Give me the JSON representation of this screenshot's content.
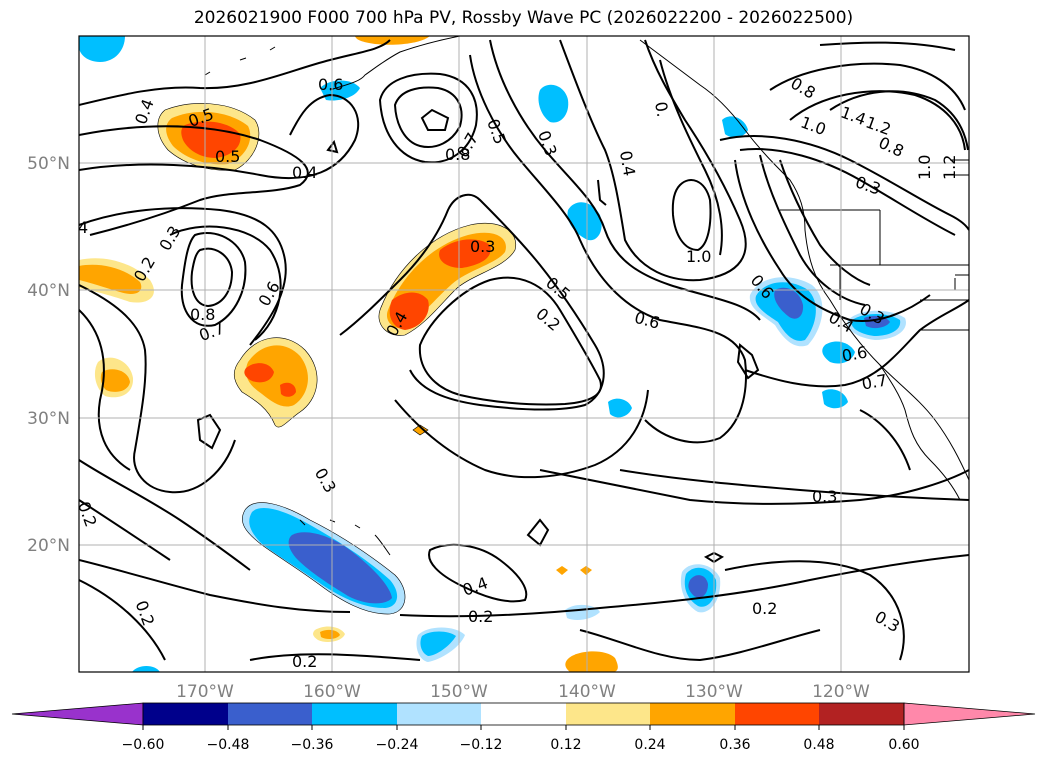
{
  "title": "2026021900 F000 700 hPa PV, Rossby Wave PC (2026022200 - 2026022500)",
  "lat_labels": [
    "50°N",
    "40°N",
    "30°N",
    "20°N"
  ],
  "lon_labels": [
    "170°W",
    "160°W",
    "150°W",
    "140°W",
    "130°W",
    "120°W"
  ],
  "contour_labels": [
    "0.4",
    "0.5",
    "0.5",
    "0.4",
    "0.6",
    "0.8",
    "0.7",
    "0.5",
    "0.3",
    "0.4",
    "0.",
    "0.8",
    "1.0",
    "1.4",
    "1.2",
    "0.8",
    "0.3",
    "1.0",
    "1.2",
    "4",
    "0.2",
    "0.3",
    "0.6",
    "0.8",
    "0.7",
    "0.3",
    "0.5",
    "0.2",
    "0.6",
    "1.0",
    "0.6",
    "0.4",
    "0.3",
    "0.6",
    "0.7",
    "0.4",
    "0.3",
    "0.3",
    "0.2",
    "0.2",
    "0.4",
    "0.2",
    "0.2",
    "0.2",
    "0.3"
  ],
  "colorbar": {
    "tick_labels": [
      "−0.60",
      "−0.48",
      "−0.36",
      "−0.24",
      "−0.12",
      "0.12",
      "0.24",
      "0.36",
      "0.48",
      "0.60"
    ],
    "colors": [
      "#9932cc",
      "#00008b",
      "#3a5fcd",
      "#00bfff",
      "#b0e2ff",
      "#ffffff",
      "#fde68a",
      "#ffa500",
      "#ff4500",
      "#b22222",
      "#ff88aa"
    ]
  },
  "colors": {
    "pos_light": "#fde68a",
    "pos_mid": "#ffa500",
    "pos_strong": "#ff4500",
    "neg_light": "#00bfff",
    "neg_mid": "#3a5fcd",
    "neg_vlight": "#b0e2ff"
  }
}
